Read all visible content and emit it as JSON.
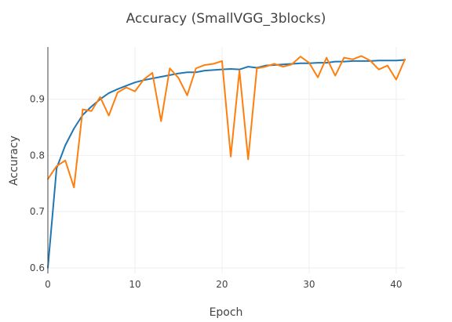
{
  "chart_data": {
    "type": "line",
    "title": "Accuracy (SmallVGG_3blocks)",
    "xlabel": "Epoch",
    "ylabel": "Accuracy",
    "xlim": [
      0,
      41
    ],
    "ylim": [
      0.59,
      0.993
    ],
    "x_ticks": [
      0,
      10,
      20,
      30,
      40
    ],
    "y_ticks": [
      0.6,
      0.7,
      0.8,
      0.9
    ],
    "x_tick_labels": [
      "0",
      "10",
      "20",
      "30",
      "40"
    ],
    "y_tick_labels": [
      "0.6",
      "0.7",
      "0.8",
      "0.9"
    ],
    "grid": true,
    "legend": "none",
    "x": [
      0,
      1,
      2,
      3,
      4,
      5,
      6,
      7,
      8,
      9,
      10,
      11,
      12,
      13,
      14,
      15,
      16,
      17,
      18,
      19,
      20,
      21,
      22,
      23,
      24,
      25,
      26,
      27,
      28,
      29,
      30,
      31,
      32,
      33,
      34,
      35,
      36,
      37,
      38,
      39,
      40,
      41
    ],
    "series": [
      {
        "color": "#1f77b4",
        "values": [
          0.6,
          0.777,
          0.818,
          0.848,
          0.872,
          0.887,
          0.9,
          0.911,
          0.918,
          0.924,
          0.93,
          0.934,
          0.937,
          0.94,
          0.943,
          0.946,
          0.948,
          0.948,
          0.951,
          0.952,
          0.953,
          0.954,
          0.953,
          0.958,
          0.956,
          0.96,
          0.961,
          0.962,
          0.963,
          0.964,
          0.964,
          0.965,
          0.965,
          0.967,
          0.967,
          0.968,
          0.968,
          0.968,
          0.969,
          0.969,
          0.969,
          0.97
        ]
      },
      {
        "color": "#ff7f0e",
        "values": [
          0.758,
          0.781,
          0.791,
          0.743,
          0.882,
          0.879,
          0.904,
          0.871,
          0.912,
          0.921,
          0.914,
          0.935,
          0.947,
          0.861,
          0.955,
          0.938,
          0.907,
          0.955,
          0.961,
          0.963,
          0.968,
          0.798,
          0.951,
          0.793,
          0.955,
          0.958,
          0.963,
          0.958,
          0.962,
          0.976,
          0.965,
          0.939,
          0.974,
          0.942,
          0.974,
          0.971,
          0.977,
          0.969,
          0.953,
          0.96,
          0.935,
          0.971
        ]
      }
    ]
  }
}
